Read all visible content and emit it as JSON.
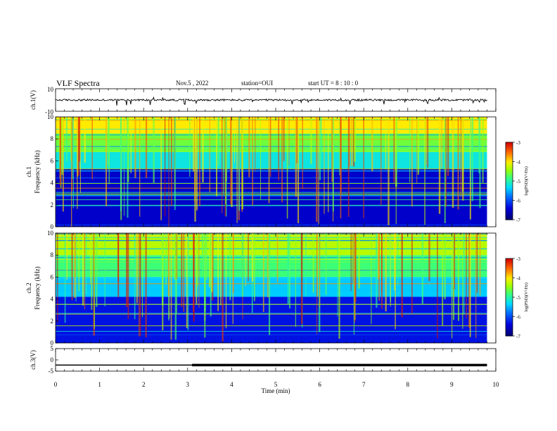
{
  "header": {
    "title": "VLF Spectra",
    "date": "Nov.5 , 2022",
    "station": "station=OUI",
    "start": "start UT = 8 : 10 : 0"
  },
  "chart_data": [
    {
      "type": "line",
      "panel": "ch1-waveform",
      "ylabel": "ch.1(V)",
      "ylim": [
        -10,
        10
      ],
      "y_tick_labels": [
        "10",
        "-10"
      ],
      "xlim": [
        0,
        10
      ],
      "baseline": 0,
      "trace_end_min": 9.8
    },
    {
      "type": "heatmap",
      "panel": "ch1-spectrogram",
      "ylabel": "ch.1\nFrequency (kHz)",
      "ylim": [
        0,
        10
      ],
      "y_ticks": [
        0,
        2,
        4,
        6,
        8,
        10
      ],
      "xlim": [
        0,
        10
      ],
      "data_end_min": 9.8,
      "colorbar": {
        "label": "log(PSD)(V²/Hz)",
        "range": [
          -7,
          -3
        ],
        "ticks": [
          -3,
          -4,
          -5,
          -6,
          -7
        ]
      },
      "bands": [
        {
          "f_from": 0,
          "f_to": 5.3,
          "level": -6.5
        },
        {
          "f_from": 5.3,
          "f_to": 6.8,
          "level": -5.2
        },
        {
          "f_from": 6.8,
          "f_to": 8.5,
          "level": -4.6
        },
        {
          "f_from": 8.5,
          "f_to": 10,
          "level": -4.0
        }
      ]
    },
    {
      "type": "heatmap",
      "panel": "ch2-spectrogram",
      "ylabel": "ch.2\nFrequency (kHz)",
      "ylim": [
        0,
        10
      ],
      "y_ticks": [
        0,
        2,
        4,
        6,
        8,
        10
      ],
      "xlim": [
        0,
        10
      ],
      "data_end_min": 9.8,
      "colorbar": {
        "label": "log(PSD)(V²/Hz)",
        "range": [
          -7,
          -3
        ],
        "ticks": [
          -3,
          -4,
          -5,
          -6,
          -7
        ]
      },
      "bands": [
        {
          "f_from": 0,
          "f_to": 4.2,
          "level": -6.3
        },
        {
          "f_from": 4.2,
          "f_to": 6.0,
          "level": -5.4
        },
        {
          "f_from": 6.0,
          "f_to": 8.0,
          "level": -4.8
        },
        {
          "f_from": 8.0,
          "f_to": 10,
          "level": -4.3
        }
      ]
    },
    {
      "type": "line",
      "panel": "ch3-waveform",
      "ylabel": "ch.3(V)",
      "ylim": [
        -5,
        5
      ],
      "y_ticks": [
        5,
        0,
        -5
      ],
      "xlim": [
        0,
        10
      ],
      "xlabel": "Time (min)",
      "x_ticks": [
        0,
        1,
        2,
        3,
        4,
        5,
        6,
        7,
        8,
        9,
        10
      ],
      "segments": [
        {
          "x0": 0,
          "x1": 3.1,
          "y": -2.3
        },
        {
          "x0": 3.1,
          "x1": 9.8,
          "y": -2.3,
          "thick": true
        }
      ]
    }
  ]
}
